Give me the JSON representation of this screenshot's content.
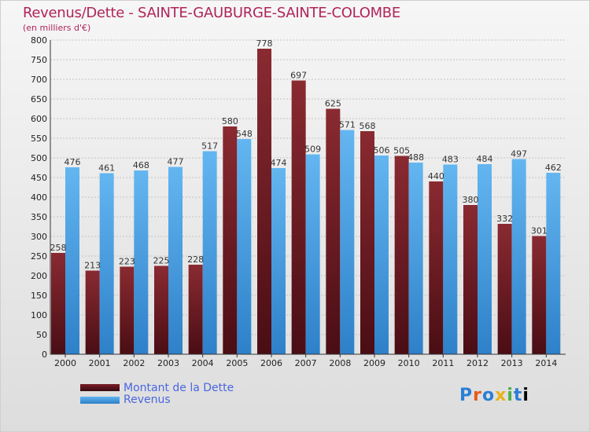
{
  "title": "Revenus/Dette - SAINTE-GAUBURGE-SAINTE-COLOMBE",
  "subtitle": "(en milliers d'€)",
  "legend": {
    "debt_label": "Montant de la Dette",
    "revenue_label": "Revenus"
  },
  "logo_text": "Proxiti",
  "colors": {
    "debt_top": "#8a2a31",
    "debt_bottom": "#4a0d14",
    "revenue_top": "#63b6f0",
    "revenue_bottom": "#2e80c9",
    "title": "#b0245a"
  },
  "chart_data": {
    "type": "bar",
    "title": "Revenus/Dette - SAINTE-GAUBURGE-SAINTE-COLOMBE",
    "ylabel": "(en milliers d'€)",
    "xlabel": "",
    "ylim": [
      0,
      800
    ],
    "ytick_step": 50,
    "grid": true,
    "legend_position": "bottom-left",
    "categories": [
      "2000",
      "2001",
      "2002",
      "2003",
      "2004",
      "2005",
      "2006",
      "2007",
      "2008",
      "2009",
      "2010",
      "2011",
      "2012",
      "2013",
      "2014"
    ],
    "series": [
      {
        "name": "Montant de la Dette",
        "values": [
          258,
          213,
          223,
          225,
          228,
          580,
          778,
          697,
          625,
          568,
          505,
          440,
          380,
          332,
          301
        ]
      },
      {
        "name": "Revenus",
        "values": [
          476,
          461,
          468,
          477,
          517,
          548,
          474,
          509,
          571,
          506,
          488,
          483,
          484,
          497,
          462
        ]
      }
    ]
  }
}
